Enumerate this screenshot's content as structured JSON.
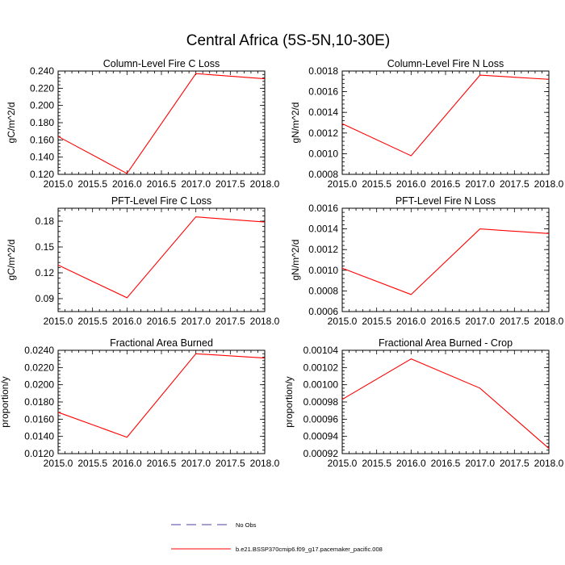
{
  "figure": {
    "title": "Central Africa (5S-5N,10-30E)"
  },
  "chart_data": [
    {
      "type": "line",
      "title": "Column-Level Fire C Loss",
      "xlabel": "",
      "ylabel": "gC/m^2/d",
      "x": [
        2015.0,
        2016.0,
        2017.0,
        2018.0
      ],
      "xlim": [
        2015.0,
        2018.0
      ],
      "xticks": [
        "2015.0",
        "2015.5",
        "2016.0",
        "2016.5",
        "2017.0",
        "2017.5",
        "2018.0"
      ],
      "ylim": [
        0.12,
        0.24
      ],
      "yticks": [
        "0.120",
        "0.140",
        "0.160",
        "0.180",
        "0.200",
        "0.220",
        "0.240"
      ],
      "series": [
        {
          "name": "b.e21.BSSP370cmip6.f09_g17.pacemaker_pacific.008",
          "color": "#ff0000",
          "values": [
            0.164,
            0.121,
            0.237,
            0.231
          ]
        }
      ]
    },
    {
      "type": "line",
      "title": "Column-Level Fire N Loss",
      "xlabel": "",
      "ylabel": "gN/m^2/d",
      "x": [
        2015.0,
        2016.0,
        2017.0,
        2018.0
      ],
      "xlim": [
        2015.0,
        2018.0
      ],
      "xticks": [
        "2015.0",
        "2015.5",
        "2016.0",
        "2016.5",
        "2017.0",
        "2017.5",
        "2018.0"
      ],
      "ylim": [
        0.0008,
        0.0018
      ],
      "yticks": [
        "0.0008",
        "0.0010",
        "0.0012",
        "0.0014",
        "0.0016",
        "0.0018"
      ],
      "series": [
        {
          "name": "b.e21.BSSP370cmip6.f09_g17.pacemaker_pacific.008",
          "color": "#ff0000",
          "values": [
            0.00129,
            0.00098,
            0.00176,
            0.00172
          ]
        }
      ]
    },
    {
      "type": "line",
      "title": "PFT-Level Fire C Loss",
      "xlabel": "",
      "ylabel": "gC/m^2/d",
      "x": [
        2015.0,
        2016.0,
        2017.0,
        2018.0
      ],
      "xlim": [
        2015.0,
        2018.0
      ],
      "xticks": [
        "2015.0",
        "2015.5",
        "2016.0",
        "2016.5",
        "2017.0",
        "2017.5",
        "2018.0"
      ],
      "ylim": [
        0.075,
        0.195
      ],
      "yticks": [
        "0.09",
        "0.12",
        "0.15",
        "0.18"
      ],
      "ytick_values": [
        0.09,
        0.12,
        0.15,
        0.18
      ],
      "series": [
        {
          "name": "b.e21.BSSP370cmip6.f09_g17.pacemaker_pacific.008",
          "color": "#ff0000",
          "values": [
            0.129,
            0.091,
            0.185,
            0.179
          ]
        }
      ]
    },
    {
      "type": "line",
      "title": "PFT-Level Fire N Loss",
      "xlabel": "",
      "ylabel": "gN/m^2/d",
      "x": [
        2015.0,
        2016.0,
        2017.0,
        2018.0
      ],
      "xlim": [
        2015.0,
        2018.0
      ],
      "xticks": [
        "2015.0",
        "2015.5",
        "2016.0",
        "2016.5",
        "2017.0",
        "2017.5",
        "2018.0"
      ],
      "ylim": [
        0.0006,
        0.0016
      ],
      "yticks": [
        "0.0006",
        "0.0008",
        "0.0010",
        "0.0012",
        "0.0014",
        "0.0016"
      ],
      "series": [
        {
          "name": "b.e21.BSSP370cmip6.f09_g17.pacemaker_pacific.008",
          "color": "#ff0000",
          "values": [
            0.00102,
            0.000765,
            0.0014,
            0.001355
          ]
        }
      ]
    },
    {
      "type": "line",
      "title": "Fractional Area Burned",
      "xlabel": "",
      "ylabel": "proportion/y",
      "x": [
        2015.0,
        2016.0,
        2017.0,
        2018.0
      ],
      "xlim": [
        2015.0,
        2018.0
      ],
      "xticks": [
        "2015.0",
        "2015.5",
        "2016.0",
        "2016.5",
        "2017.0",
        "2017.5",
        "2018.0"
      ],
      "ylim": [
        0.012,
        0.024
      ],
      "yticks": [
        "0.0120",
        "0.0140",
        "0.0160",
        "0.0180",
        "0.0200",
        "0.0220",
        "0.0240"
      ],
      "series": [
        {
          "name": "b.e21.BSSP370cmip6.f09_g17.pacemaker_pacific.008",
          "color": "#ff0000",
          "values": [
            0.0168,
            0.0139,
            0.0236,
            0.0231
          ]
        }
      ]
    },
    {
      "type": "line",
      "title": "Fractional Area Burned - Crop",
      "xlabel": "",
      "ylabel": "proportion/y",
      "x": [
        2015.0,
        2016.0,
        2017.0,
        2018.0
      ],
      "xlim": [
        2015.0,
        2018.0
      ],
      "xticks": [
        "2015.0",
        "2015.5",
        "2016.0",
        "2016.5",
        "2017.0",
        "2017.5",
        "2018.0"
      ],
      "ylim": [
        0.00092,
        0.00104
      ],
      "yticks": [
        "0.00092",
        "0.00094",
        "0.00096",
        "0.00098",
        "0.00100",
        "0.00102",
        "0.00104"
      ],
      "series": [
        {
          "name": "b.e21.BSSP370cmip6.f09_g17.pacemaker_pacific.008",
          "color": "#ff0000",
          "values": [
            0.000983,
            0.00103,
            0.000996,
            0.000926
          ]
        }
      ]
    }
  ],
  "legend": {
    "entries": [
      {
        "label": "No Obs",
        "color": "#4b3fa0",
        "style": "dashed"
      },
      {
        "label": "b.e21.BSSP370cmip6.f09_g17.pacemaker_pacific.008",
        "color": "#ff0000",
        "style": "solid"
      }
    ]
  }
}
